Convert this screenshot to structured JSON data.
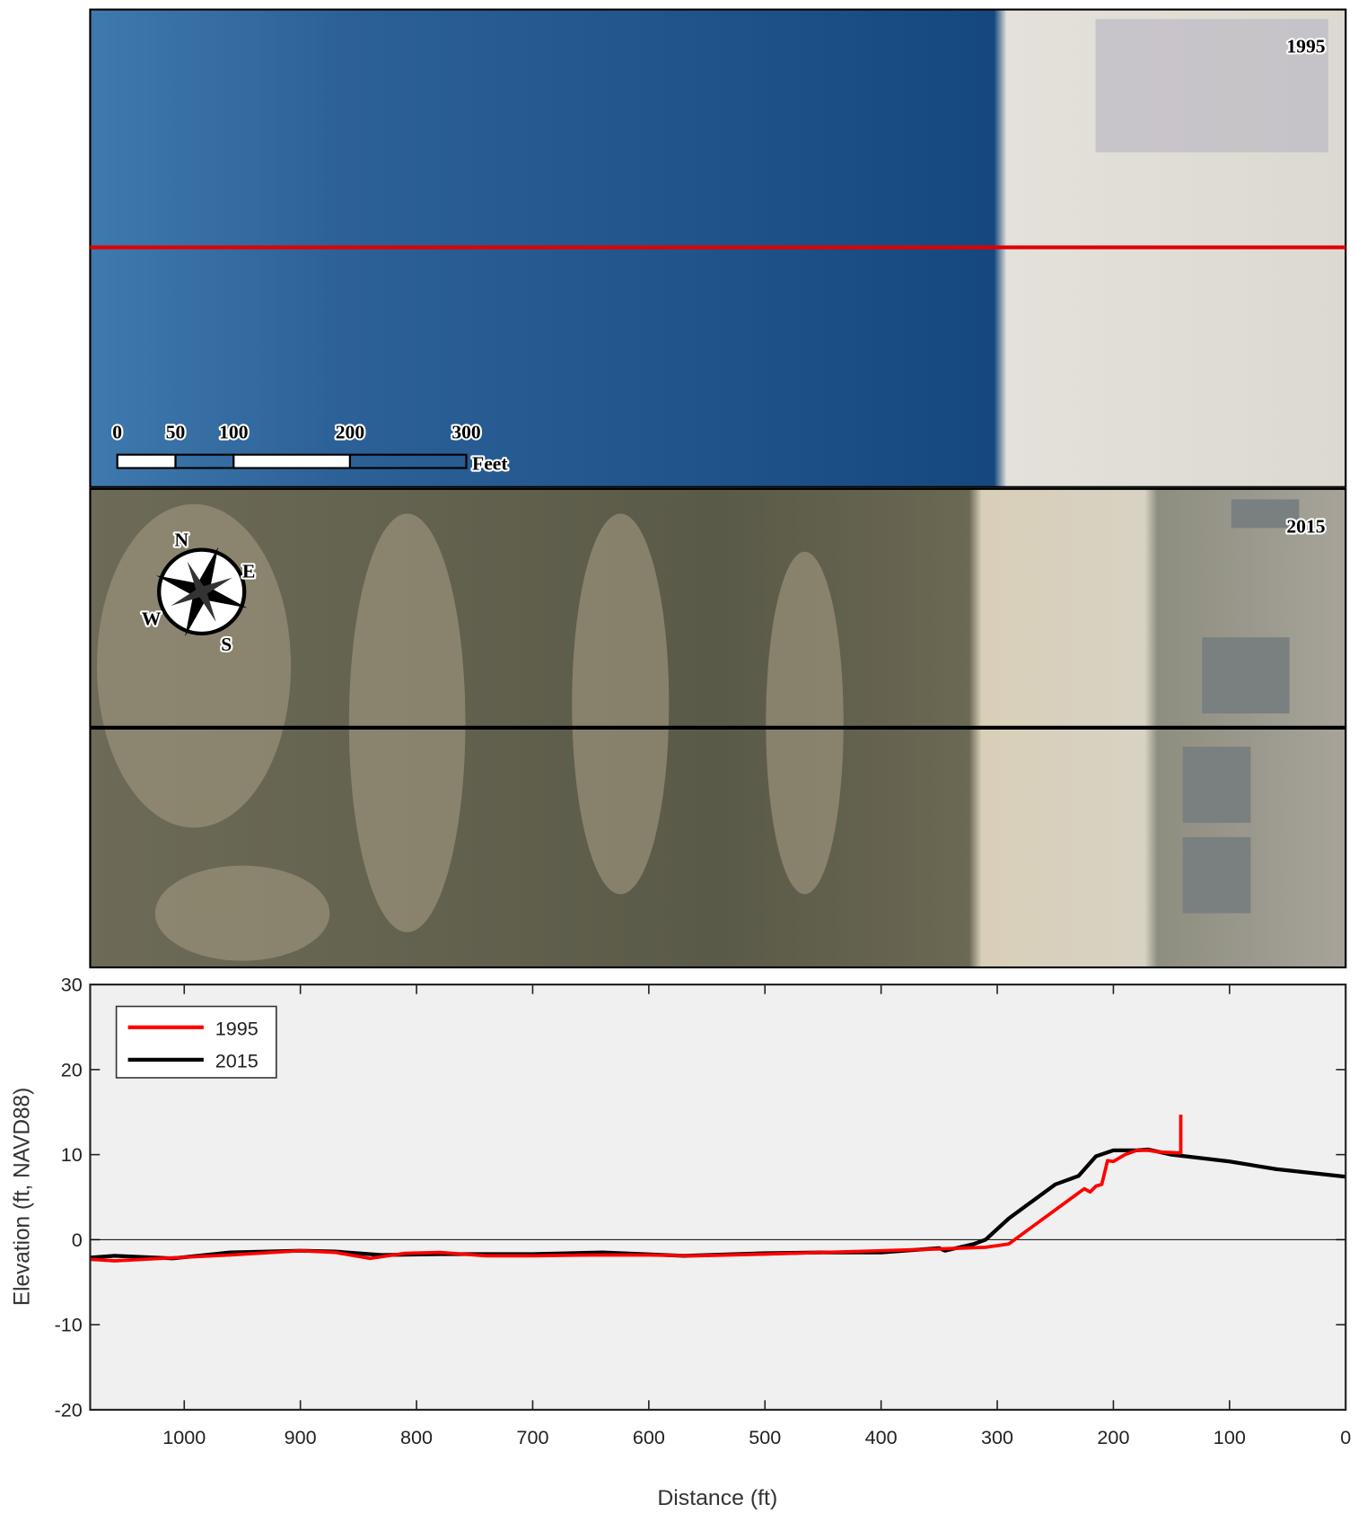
{
  "panels": [
    {
      "label": "1995"
    },
    {
      "label": "2015"
    }
  ],
  "scale_bar": {
    "ticks": [
      0,
      50,
      100,
      200,
      300
    ],
    "unit": "Feet"
  },
  "compass": {
    "N": "N",
    "E": "E",
    "S": "S",
    "W": "W"
  },
  "chart_data": {
    "type": "line",
    "xlabel": "Distance (ft)",
    "ylabel": "Elevation (ft, NAVD88)",
    "xlim": [
      1081,
      0
    ],
    "ylim": [
      -20,
      30
    ],
    "xticks": [
      1000,
      900,
      800,
      700,
      600,
      500,
      400,
      300,
      200,
      100,
      0
    ],
    "yticks": [
      -20,
      -10,
      0,
      10,
      20,
      30
    ],
    "legend": "upper left",
    "series": [
      {
        "name": "1995",
        "color": "#ff0000",
        "x": [
          1081,
          1060,
          1020,
          960,
          900,
          870,
          840,
          810,
          780,
          740,
          700,
          650,
          600,
          560,
          500,
          450,
          400,
          350,
          310,
          290,
          270,
          250,
          230,
          225,
          220,
          215,
          210,
          205,
          200,
          190,
          180,
          170,
          160,
          142,
          142
        ],
        "values": [
          -2.3,
          -2.5,
          -2.2,
          -1.8,
          -1.3,
          -1.5,
          -2.2,
          -1.6,
          -1.5,
          -1.9,
          -1.9,
          -1.8,
          -1.8,
          -1.9,
          -1.7,
          -1.5,
          -1.3,
          -1.1,
          -0.9,
          -0.5,
          1.5,
          3.5,
          5.5,
          6,
          5.6,
          6.3,
          6.5,
          9.3,
          9.2,
          10,
          10.5,
          10.5,
          10.3,
          10.2,
          14.7
        ]
      },
      {
        "name": "2015",
        "color": "#000000",
        "x": [
          1081,
          1060,
          1010,
          960,
          900,
          870,
          830,
          780,
          700,
          640,
          570,
          500,
          450,
          400,
          350,
          345,
          320,
          310,
          290,
          270,
          250,
          230,
          215,
          200,
          180,
          170,
          150,
          100,
          60,
          0
        ],
        "values": [
          -2.1,
          -1.9,
          -2.2,
          -1.5,
          -1.3,
          -1.4,
          -1.8,
          -1.7,
          -1.7,
          -1.5,
          -1.9,
          -1.6,
          -1.5,
          -1.5,
          -1.0,
          -1.3,
          -0.5,
          0,
          2.5,
          4.5,
          6.5,
          7.5,
          9.8,
          10.5,
          10.5,
          10.6,
          10.0,
          9.2,
          8.3,
          7.4
        ]
      }
    ]
  }
}
